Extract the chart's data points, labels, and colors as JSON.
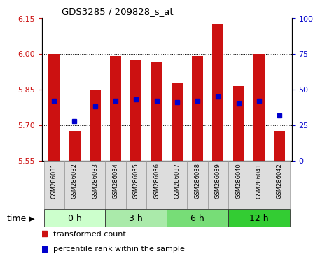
{
  "title": "GDS3285 / 209828_s_at",
  "samples": [
    "GSM286031",
    "GSM286032",
    "GSM286033",
    "GSM286034",
    "GSM286035",
    "GSM286036",
    "GSM286037",
    "GSM286038",
    "GSM286039",
    "GSM286040",
    "GSM286041",
    "GSM286042"
  ],
  "bar_bottom": 5.55,
  "bar_tops": [
    6.0,
    5.675,
    5.85,
    5.99,
    5.975,
    5.965,
    5.875,
    5.99,
    6.125,
    5.865,
    6.0,
    5.675
  ],
  "percentile_ranks": [
    42,
    28,
    38,
    42,
    43,
    42,
    41,
    42,
    45,
    40,
    42,
    32
  ],
  "ylim_left": [
    5.55,
    6.15
  ],
  "ylim_right": [
    0,
    100
  ],
  "yticks_left": [
    5.55,
    5.7,
    5.85,
    6.0,
    6.15
  ],
  "yticks_right": [
    0,
    25,
    50,
    75,
    100
  ],
  "grid_yticks": [
    5.7,
    5.85,
    6.0
  ],
  "bar_color": "#cc1111",
  "percentile_color": "#0000cc",
  "time_groups": [
    {
      "label": "0 h",
      "start": 0,
      "end": 3
    },
    {
      "label": "3 h",
      "start": 3,
      "end": 6
    },
    {
      "label": "6 h",
      "start": 6,
      "end": 9
    },
    {
      "label": "12 h",
      "start": 9,
      "end": 12
    }
  ],
  "time_colors": [
    "#ccffcc",
    "#aaeaaa",
    "#77dd77",
    "#33cc33"
  ],
  "time_label": "time",
  "legend_bar_label": "transformed count",
  "legend_pct_label": "percentile rank within the sample",
  "sample_bg_color": "#dddddd",
  "bar_width": 0.55
}
